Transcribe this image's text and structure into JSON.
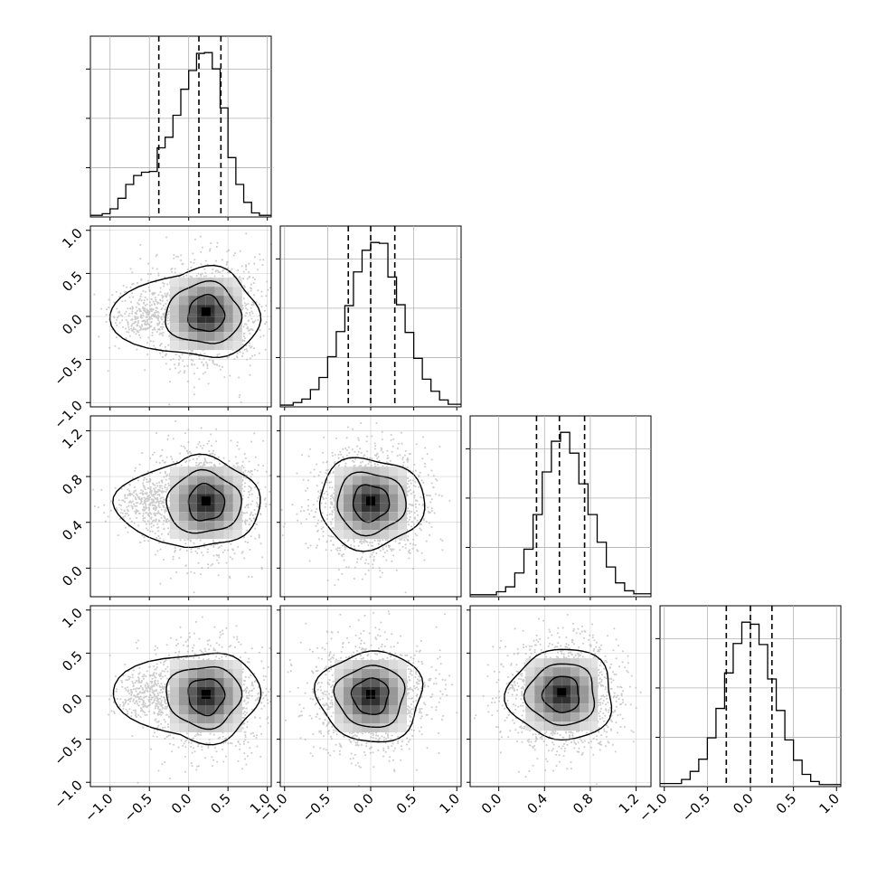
{
  "chart_data": {
    "type": "corner",
    "grid": true,
    "n_params": 4,
    "params": [
      {
        "xlim": [
          -1.25,
          1.05
        ],
        "ylim_scatter": null,
        "ticks": [
          -1.0,
          -0.5,
          0.0,
          0.5,
          1.0
        ],
        "tick_labels": [
          "−1.0",
          "−0.5",
          "0.0",
          "0.5",
          "1.0"
        ],
        "quantiles": [
          -0.38,
          0.13,
          0.41
        ]
      },
      {
        "xlim": [
          -1.05,
          1.05
        ],
        "ticks": [
          -1.0,
          -0.5,
          0.0,
          0.5,
          1.0
        ],
        "tick_labels": [
          "−1.0",
          "−0.5",
          "0.0",
          "0.5",
          "1.0"
        ],
        "quantiles": [
          -0.26,
          0.0,
          0.28
        ]
      },
      {
        "xlim": [
          -0.25,
          1.33
        ],
        "ticks": [
          0.0,
          0.4,
          0.8,
          1.2
        ],
        "tick_labels": [
          "0.0",
          "0.4",
          "0.8",
          "1.2"
        ],
        "quantiles": [
          0.33,
          0.53,
          0.75
        ]
      },
      {
        "xlim": [
          -1.05,
          1.05
        ],
        "ticks": [
          -1.0,
          -0.5,
          0.0,
          0.5,
          1.0
        ],
        "tick_labels": [
          "−1.0",
          "−0.5",
          "0.0",
          "0.5",
          "1.0"
        ],
        "quantiles": [
          -0.28,
          0.0,
          0.25
        ]
      }
    ],
    "histograms": [
      {
        "param": 0,
        "bins": [
          -1.2,
          -1.1,
          -1.0,
          -0.9,
          -0.8,
          -0.7,
          -0.6,
          -0.5,
          -0.4,
          -0.3,
          -0.2,
          -0.1,
          0.0,
          0.1,
          0.2,
          0.3,
          0.4,
          0.5,
          0.6,
          0.7,
          0.8,
          0.9,
          1.0
        ],
        "counts": [
          2,
          4,
          10,
          23,
          40,
          51,
          55,
          56,
          85,
          98,
          125,
          157,
          180,
          201,
          202,
          182,
          134,
          73,
          40,
          18,
          5,
          2
        ]
      },
      {
        "param": 1,
        "bins": [
          -1.0,
          -0.9,
          -0.8,
          -0.7,
          -0.6,
          -0.5,
          -0.4,
          -0.3,
          -0.2,
          -0.1,
          0.0,
          0.1,
          0.2,
          0.3,
          0.4,
          0.5,
          0.6,
          0.7,
          0.8,
          0.9,
          1.0
        ],
        "counts": [
          2,
          5,
          9,
          20,
          34,
          58,
          87,
          117,
          156,
          181,
          190,
          189,
          150,
          118,
          86,
          56,
          32,
          18,
          8,
          3
        ]
      },
      {
        "param": 2,
        "bins": [
          -0.1,
          -0.02,
          0.06,
          0.14,
          0.22,
          0.3,
          0.38,
          0.46,
          0.54,
          0.62,
          0.7,
          0.78,
          0.86,
          0.94,
          1.02,
          1.1,
          1.18,
          1.26
        ],
        "counts": [
          2,
          5,
          10,
          24,
          48,
          83,
          126,
          157,
          166,
          145,
          114,
          83,
          55,
          30,
          14,
          6,
          3
        ]
      },
      {
        "param": 3,
        "bins": [
          -0.9,
          -0.8,
          -0.7,
          -0.6,
          -0.5,
          -0.4,
          -0.3,
          -0.2,
          -0.1,
          0.0,
          0.1,
          0.2,
          0.3,
          0.4,
          0.5,
          0.6,
          0.7,
          0.8,
          0.9
        ],
        "counts": [
          3,
          7,
          15,
          27,
          48,
          77,
          112,
          141,
          162,
          160,
          140,
          106,
          75,
          46,
          26,
          12,
          5,
          2
        ]
      }
    ],
    "panels_2d": [
      {
        "x": 0,
        "y": 1,
        "mean": [
          0.22,
          0.03
        ],
        "secondary_lobe": [
          -0.55,
          0.0
        ]
      },
      {
        "x": 0,
        "y": 2,
        "mean": [
          0.22,
          0.57
        ],
        "secondary_lobe": [
          -0.5,
          0.58
        ]
      },
      {
        "x": 1,
        "y": 2,
        "mean": [
          0.0,
          0.57
        ],
        "secondary_lobe": null
      },
      {
        "x": 0,
        "y": 3,
        "mean": [
          0.22,
          0.0
        ],
        "secondary_lobe": [
          -0.5,
          0.02
        ]
      },
      {
        "x": 1,
        "y": 3,
        "mean": [
          0.0,
          0.0
        ],
        "secondary_lobe": null
      },
      {
        "x": 2,
        "y": 3,
        "mean": [
          0.55,
          0.02
        ],
        "secondary_lobe": null
      }
    ]
  }
}
